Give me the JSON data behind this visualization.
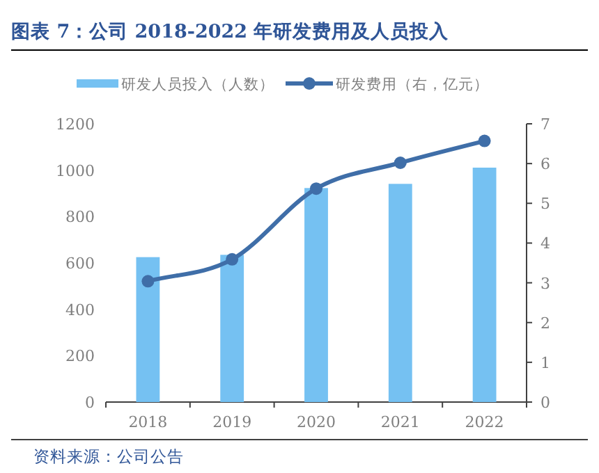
{
  "chart_data": {
    "type": "bar",
    "title": "图表 7：公司 2018-2022 年研发费用及人员投入",
    "categories": [
      "2018",
      "2019",
      "2020",
      "2021",
      "2022"
    ],
    "series": [
      {
        "name": "研发人员投入（人数）",
        "color": "#75c1f2",
        "values": [
          625,
          635,
          923,
          941,
          1011
        ]
      },
      {
        "name": "研发费用（右，亿元）",
        "type": "line",
        "axis": "y2",
        "color": "#3f6ea8",
        "values": [
          3.04,
          3.59,
          5.37,
          6.02,
          6.57
        ]
      }
    ],
    "ylim": [
      0,
      1200
    ],
    "yticks": [
      0,
      200,
      400,
      600,
      800,
      1000,
      1200
    ],
    "y2lim": [
      0,
      7
    ],
    "y2ticks": [
      0,
      1,
      2,
      3,
      4,
      5,
      6,
      7
    ],
    "legend": "top",
    "marker": "circle",
    "annotations": [
      "资料来源：公司公告"
    ]
  }
}
